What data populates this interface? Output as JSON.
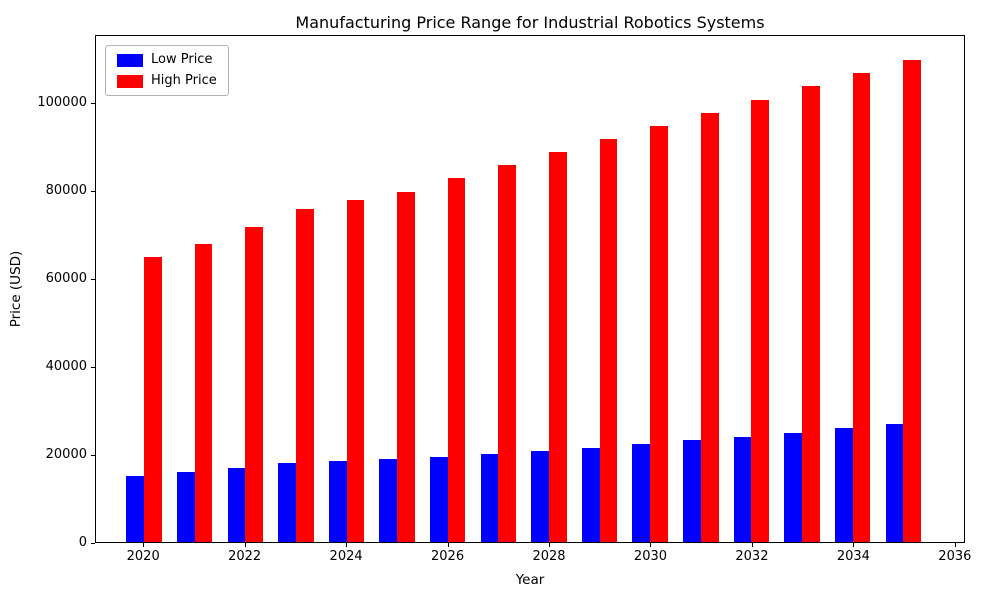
{
  "chart_data": {
    "type": "bar",
    "title": "Manufacturing Price Range for Industrial Robotics Systems",
    "xlabel": "Year",
    "ylabel": "Price (USD)",
    "categories": [
      2020,
      2021,
      2022,
      2023,
      2024,
      2025,
      2026,
      2027,
      2028,
      2029,
      2030,
      2031,
      2032,
      2033,
      2034,
      2035
    ],
    "series": [
      {
        "name": "Low Price",
        "color": "#0000ff",
        "values": [
          15000,
          16000,
          17000,
          18000,
          18500,
          19000,
          19500,
          20000,
          20800,
          21500,
          22300,
          23200,
          24000,
          24800,
          26000,
          27000
        ]
      },
      {
        "name": "High Price",
        "color": "#ff0000",
        "values": [
          65000,
          68000,
          72000,
          76000,
          78000,
          80000,
          83000,
          86000,
          89000,
          92000,
          95000,
          98000,
          101000,
          104000,
          107000,
          110000
        ]
      }
    ],
    "xlim": [
      2019.05,
      2036.2
    ],
    "ylim": [
      0,
      115500
    ],
    "x_ticks": [
      2020,
      2022,
      2024,
      2026,
      2028,
      2030,
      2032,
      2034,
      2036
    ],
    "y_ticks": [
      0,
      20000,
      40000,
      60000,
      80000,
      100000
    ],
    "bar_width": 0.35,
    "grid": false,
    "legend_position": "top-left"
  }
}
